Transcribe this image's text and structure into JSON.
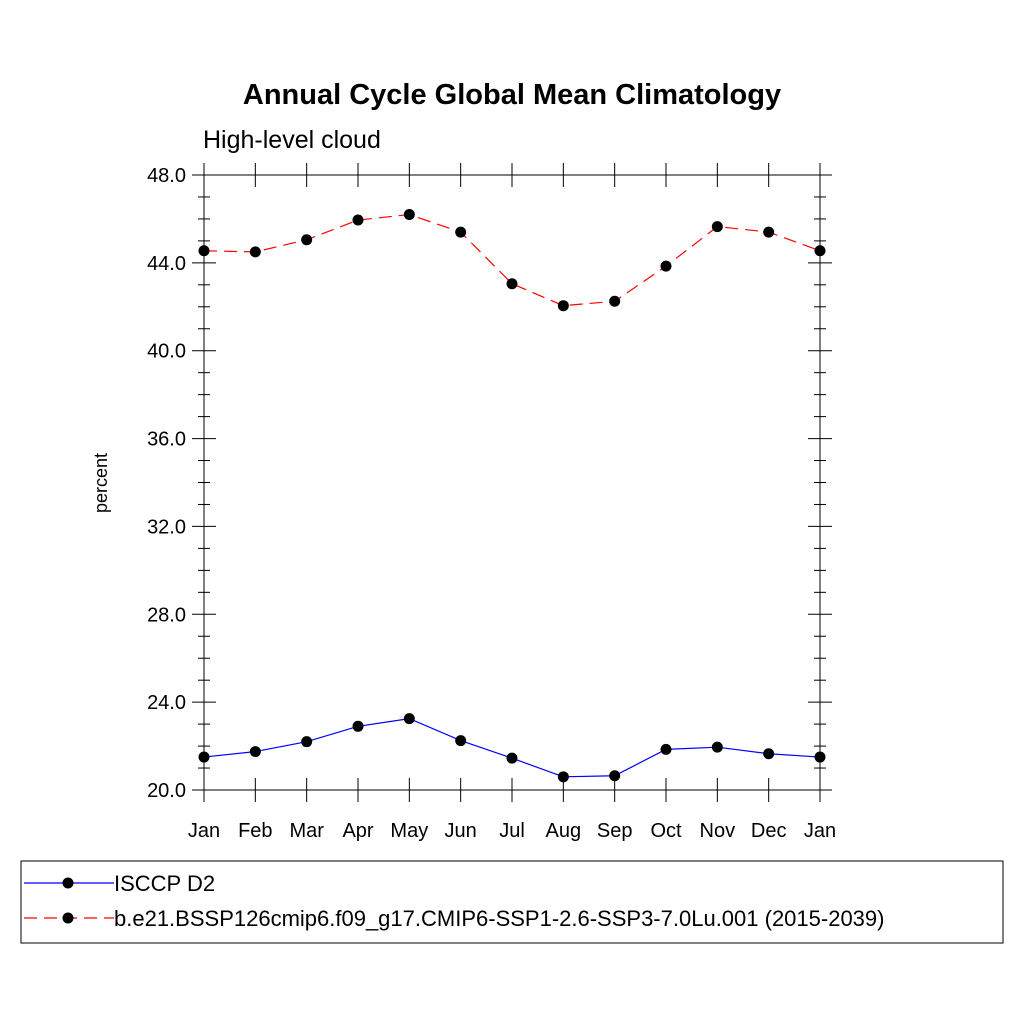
{
  "chart_data": {
    "type": "line",
    "title": "Annual Cycle Global Mean Climatology",
    "subtitle": "High-level cloud",
    "xlabel": "",
    "ylabel": "percent",
    "categories": [
      "Jan",
      "Feb",
      "Mar",
      "Apr",
      "May",
      "Jun",
      "Jul",
      "Aug",
      "Sep",
      "Oct",
      "Nov",
      "Dec",
      "Jan"
    ],
    "ylim": [
      20.0,
      48.0
    ],
    "yticks": [
      "20.0",
      "24.0",
      "28.0",
      "32.0",
      "36.0",
      "40.0",
      "44.0",
      "48.0"
    ],
    "grid": false,
    "legend_position": "bottom",
    "series": [
      {
        "name": "ISCCP D2",
        "color": "#0000ff",
        "line_style": "solid",
        "marker": "filled-circle",
        "values": [
          21.5,
          21.75,
          22.2,
          22.9,
          23.25,
          22.25,
          21.45,
          20.6,
          20.65,
          21.85,
          21.95,
          21.65,
          21.5
        ]
      },
      {
        "name": "b.e21.BSSP126cmip6.f09_g17.CMIP6-SSP1-2.6-SSP3-7.0Lu.001 (2015-2039)",
        "color": "#ff0000",
        "line_style": "dashed",
        "marker": "filled-circle",
        "values": [
          44.55,
          44.5,
          45.05,
          45.95,
          46.2,
          45.4,
          43.05,
          42.05,
          42.25,
          43.85,
          45.65,
          45.4,
          44.55
        ]
      }
    ]
  }
}
